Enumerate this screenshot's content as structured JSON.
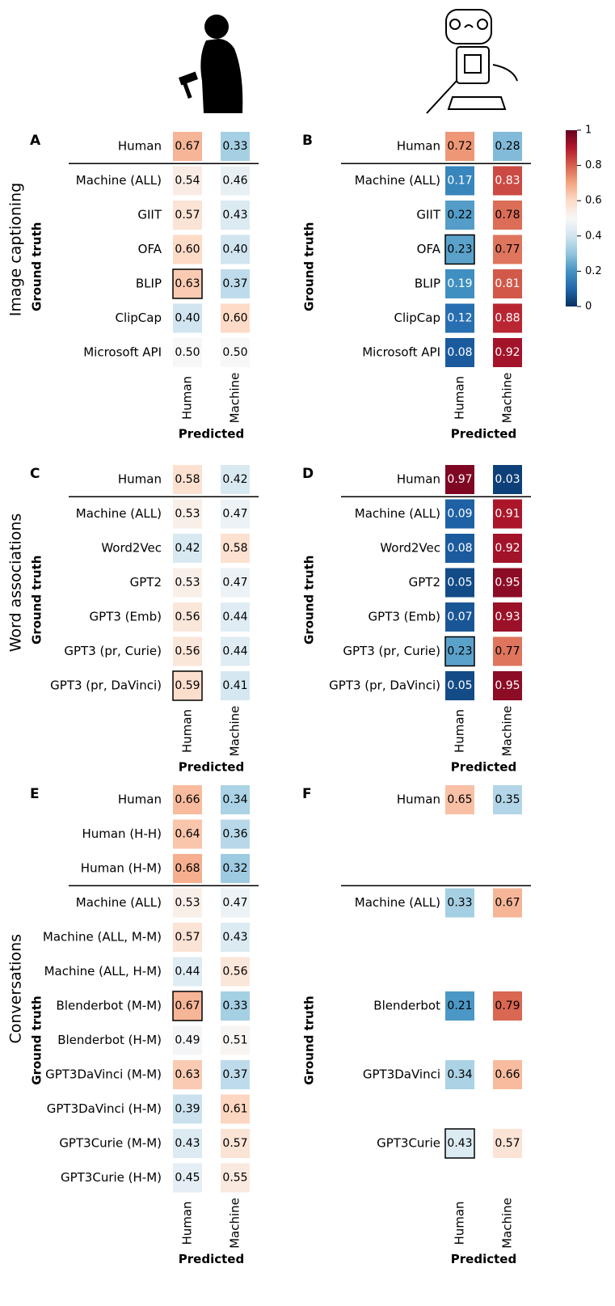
{
  "chart_data": [
    {
      "type": "heatmap",
      "panel": "A",
      "section": "Image captioning",
      "ylabel": "Ground truth",
      "xlabel": "Predicted",
      "columns": [
        "Human",
        "Machine"
      ],
      "categories": [
        "Human",
        "Machine (ALL)",
        "GIIT",
        "OFA",
        "BLIP",
        "ClipCap",
        "Microsoft API"
      ],
      "values": [
        [
          0.67,
          0.33
        ],
        [
          0.54,
          0.46
        ],
        [
          0.57,
          0.43
        ],
        [
          0.6,
          0.4
        ],
        [
          0.63,
          0.37
        ],
        [
          0.4,
          0.6
        ],
        [
          0.5,
          0.5
        ]
      ],
      "value_labels": [
        [
          "0.67",
          "0.33"
        ],
        [
          "0.54",
          "0.46"
        ],
        [
          "0.57",
          "0.43"
        ],
        [
          "0.60",
          "0.40"
        ],
        [
          "0.63",
          "0.37"
        ],
        [
          "0.40",
          "0.60"
        ],
        [
          "0.50",
          "0.50"
        ]
      ],
      "divider_after": 0,
      "highlight": [
        4,
        0
      ]
    },
    {
      "type": "heatmap",
      "panel": "B",
      "ylabel": "Ground truth",
      "xlabel": "Predicted",
      "columns": [
        "Human",
        "Machine"
      ],
      "categories": [
        "Human",
        "Machine (ALL)",
        "GIIT",
        "OFA",
        "BLIP",
        "ClipCap",
        "Microsoft API"
      ],
      "values": [
        [
          0.72,
          0.28
        ],
        [
          0.17,
          0.83
        ],
        [
          0.22,
          0.78
        ],
        [
          0.23,
          0.77
        ],
        [
          0.19,
          0.81
        ],
        [
          0.12,
          0.88
        ],
        [
          0.08,
          0.92
        ]
      ],
      "value_labels": [
        [
          "0.72",
          "0.28"
        ],
        [
          "0.17",
          "0.83"
        ],
        [
          "0.22",
          "0.78"
        ],
        [
          "0.23",
          "0.77"
        ],
        [
          "0.19",
          "0.81"
        ],
        [
          "0.12",
          "0.88"
        ],
        [
          "0.08",
          "0.92"
        ]
      ],
      "divider_after": 0,
      "highlight": [
        3,
        0
      ]
    },
    {
      "type": "heatmap",
      "panel": "C",
      "section": "Word associations",
      "ylabel": "Ground truth",
      "xlabel": "Predicted",
      "columns": [
        "Human",
        "Machine"
      ],
      "categories": [
        "Human",
        "Machine (ALL)",
        "Word2Vec",
        "GPT2",
        "GPT3 (Emb)",
        "GPT3 (pr, Curie)",
        "GPT3 (pr, DaVinci)"
      ],
      "values": [
        [
          0.58,
          0.42
        ],
        [
          0.53,
          0.47
        ],
        [
          0.42,
          0.58
        ],
        [
          0.53,
          0.47
        ],
        [
          0.56,
          0.44
        ],
        [
          0.56,
          0.44
        ],
        [
          0.59,
          0.41
        ]
      ],
      "value_labels": [
        [
          "0.58",
          "0.42"
        ],
        [
          "0.53",
          "0.47"
        ],
        [
          "0.42",
          "0.58"
        ],
        [
          "0.53",
          "0.47"
        ],
        [
          "0.56",
          "0.44"
        ],
        [
          "0.56",
          "0.44"
        ],
        [
          "0.59",
          "0.41"
        ]
      ],
      "divider_after": 0,
      "highlight": [
        6,
        0
      ]
    },
    {
      "type": "heatmap",
      "panel": "D",
      "ylabel": "Ground truth",
      "xlabel": "Predicted",
      "columns": [
        "Human",
        "Machine"
      ],
      "categories": [
        "Human",
        "Machine (ALL)",
        "Word2Vec",
        "GPT2",
        "GPT3 (Emb)",
        "GPT3 (pr, Curie)",
        "GPT3 (pr, DaVinci)"
      ],
      "values": [
        [
          0.97,
          0.03
        ],
        [
          0.09,
          0.91
        ],
        [
          0.08,
          0.92
        ],
        [
          0.05,
          0.95
        ],
        [
          0.07,
          0.93
        ],
        [
          0.23,
          0.77
        ],
        [
          0.05,
          0.95
        ]
      ],
      "value_labels": [
        [
          "0.97",
          "0.03"
        ],
        [
          "0.09",
          "0.91"
        ],
        [
          "0.08",
          "0.92"
        ],
        [
          "0.05",
          "0.95"
        ],
        [
          "0.07",
          "0.93"
        ],
        [
          "0.23",
          "0.77"
        ],
        [
          "0.05",
          "0.95"
        ]
      ],
      "divider_after": 0,
      "highlight": [
        5,
        0
      ]
    },
    {
      "type": "heatmap",
      "panel": "E",
      "section": "Conversations",
      "ylabel": "Ground truth",
      "xlabel": "Predicted",
      "columns": [
        "Human",
        "Machine"
      ],
      "categories": [
        "Human",
        "Human (H-H)",
        "Human (H-M)",
        "Machine (ALL)",
        "Machine (ALL, M-M)",
        "Machine (ALL, H-M)",
        "Blenderbot (M-M)",
        "Blenderbot (H-M)",
        "GPT3DaVinci (M-M)",
        "GPT3DaVinci (H-M)",
        "GPT3Curie (M-M)",
        "GPT3Curie (H-M)"
      ],
      "values": [
        [
          0.66,
          0.34
        ],
        [
          0.64,
          0.36
        ],
        [
          0.68,
          0.32
        ],
        [
          0.53,
          0.47
        ],
        [
          0.57,
          0.43
        ],
        [
          0.44,
          0.56
        ],
        [
          0.67,
          0.33
        ],
        [
          0.49,
          0.51
        ],
        [
          0.63,
          0.37
        ],
        [
          0.39,
          0.61
        ],
        [
          0.43,
          0.57
        ],
        [
          0.45,
          0.55
        ]
      ],
      "value_labels": [
        [
          "0.66",
          "0.34"
        ],
        [
          "0.64",
          "0.36"
        ],
        [
          "0.68",
          "0.32"
        ],
        [
          "0.53",
          "0.47"
        ],
        [
          "0.57",
          "0.43"
        ],
        [
          "0.44",
          "0.56"
        ],
        [
          "0.67",
          "0.33"
        ],
        [
          "0.49",
          "0.51"
        ],
        [
          "0.63",
          "0.37"
        ],
        [
          "0.39",
          "0.61"
        ],
        [
          "0.43",
          "0.57"
        ],
        [
          "0.45",
          "0.55"
        ]
      ],
      "divider_after": 2,
      "highlight": [
        6,
        0
      ]
    },
    {
      "type": "heatmap",
      "panel": "F",
      "ylabel": "Ground truth",
      "xlabel": "Predicted",
      "columns": [
        "Human",
        "Machine"
      ],
      "categories": [
        "Human",
        null,
        null,
        "Machine (ALL)",
        null,
        null,
        "Blenderbot",
        null,
        "GPT3DaVinci",
        null,
        "GPT3Curie",
        null
      ],
      "values": [
        [
          0.65,
          0.35
        ],
        null,
        null,
        [
          0.33,
          0.67
        ],
        null,
        null,
        [
          0.21,
          0.79
        ],
        null,
        [
          0.34,
          0.66
        ],
        null,
        [
          0.43,
          0.57
        ],
        null
      ],
      "value_labels": [
        [
          "0.65",
          "0.35"
        ],
        null,
        null,
        [
          "0.33",
          "0.67"
        ],
        null,
        null,
        [
          "0.21",
          "0.79"
        ],
        null,
        [
          "0.34",
          "0.66"
        ],
        null,
        [
          "0.43",
          "0.57"
        ],
        null
      ],
      "divider_after": 2,
      "highlight": [
        10,
        0
      ]
    }
  ],
  "colorbar": {
    "lim": [
      0,
      1
    ],
    "ticks": [
      0,
      0.2,
      0.4,
      0.6,
      0.8,
      1
    ],
    "colors": [
      "#053061",
      "#2166ac",
      "#4393c3",
      "#92c5de",
      "#d1e5f0",
      "#f7f7f7",
      "#fddbc7",
      "#f4a582",
      "#d6604d",
      "#b2182b",
      "#67001f"
    ]
  }
}
